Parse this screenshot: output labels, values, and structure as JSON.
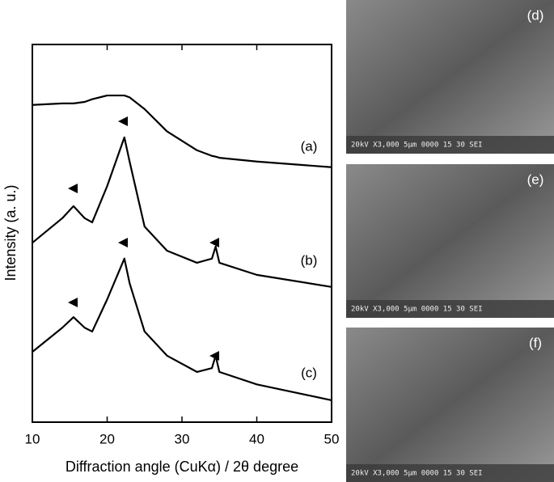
{
  "chart_data": {
    "type": "line",
    "xlabel": "Diffraction angle (CuKα) / 2θ degree",
    "ylabel": "Intensity (a. u.)",
    "x": [
      10,
      14,
      15.5,
      17,
      18,
      20,
      22.3,
      23,
      25,
      28,
      32,
      34,
      34.5,
      35,
      40,
      50
    ],
    "series": [
      {
        "name": "(a)",
        "color": "#000000",
        "values": [
          84,
          84.4,
          84.4,
          84.8,
          85.5,
          86.5,
          86.5,
          86,
          82.9,
          77,
          72,
          70.5,
          70.3,
          70,
          69,
          67.5
        ]
      },
      {
        "name": "(b)",
        "color": "#000000",
        "values": [
          47.5,
          54,
          57.2,
          54,
          52.9,
          62.5,
          75.4,
          69,
          51.8,
          45.4,
          42.2,
          43.3,
          46.5,
          42.2,
          39,
          35.8
        ]
      },
      {
        "name": "(c)",
        "color": "#000000",
        "values": [
          18.6,
          25,
          27.8,
          25,
          24,
          32.5,
          43.3,
          36.8,
          24,
          17.6,
          13.3,
          14.3,
          17.6,
          13.3,
          10,
          5.8
        ]
      }
    ],
    "xlim": [
      10,
      50
    ],
    "xticks": [
      10,
      20,
      30,
      40,
      50
    ],
    "ylim": [
      0,
      100
    ]
  },
  "images": [
    {
      "label": "(d)",
      "caption": "20kV  X3,000   5μm  0000 15 30 SEI"
    },
    {
      "label": "(e)",
      "caption": "20kV  X3,000   5μm  0000 15 30 SEI"
    },
    {
      "label": "(f)",
      "caption": "20kV  X3,000   5μm  0000 15 30 SEI"
    }
  ]
}
